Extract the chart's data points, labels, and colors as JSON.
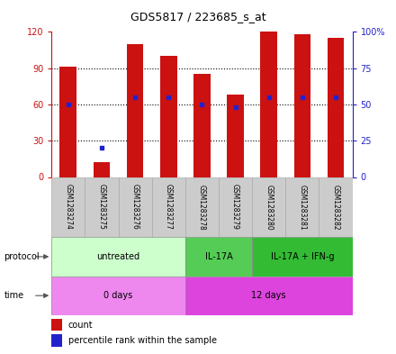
{
  "title": "GDS5817 / 223685_s_at",
  "samples": [
    "GSM1283274",
    "GSM1283275",
    "GSM1283276",
    "GSM1283277",
    "GSM1283278",
    "GSM1283279",
    "GSM1283280",
    "GSM1283281",
    "GSM1283282"
  ],
  "counts": [
    91,
    12,
    110,
    100,
    85,
    68,
    120,
    118,
    115
  ],
  "percentile_ranks": [
    50,
    20,
    55,
    55,
    50,
    48,
    55,
    55,
    55
  ],
  "ylim_left": [
    0,
    120
  ],
  "ylim_right": [
    0,
    100
  ],
  "yticks_left": [
    0,
    30,
    60,
    90,
    120
  ],
  "yticks_right": [
    0,
    25,
    50,
    75,
    100
  ],
  "ytick_labels_right": [
    "0",
    "25",
    "50",
    "75",
    "100%"
  ],
  "protocols": [
    {
      "label": "untreated",
      "start": 0,
      "end": 4,
      "color": "#ccffcc"
    },
    {
      "label": "IL-17A",
      "start": 4,
      "end": 6,
      "color": "#55cc55"
    },
    {
      "label": "IL-17A + IFN-g",
      "start": 6,
      "end": 9,
      "color": "#33bb33"
    }
  ],
  "times": [
    {
      "label": "0 days",
      "start": 0,
      "end": 4,
      "color": "#ee88ee"
    },
    {
      "label": "12 days",
      "start": 4,
      "end": 9,
      "color": "#dd44dd"
    }
  ],
  "bar_color": "#cc1111",
  "dot_color": "#2222cc",
  "sample_box_color": "#cccccc",
  "bar_width": 0.5
}
